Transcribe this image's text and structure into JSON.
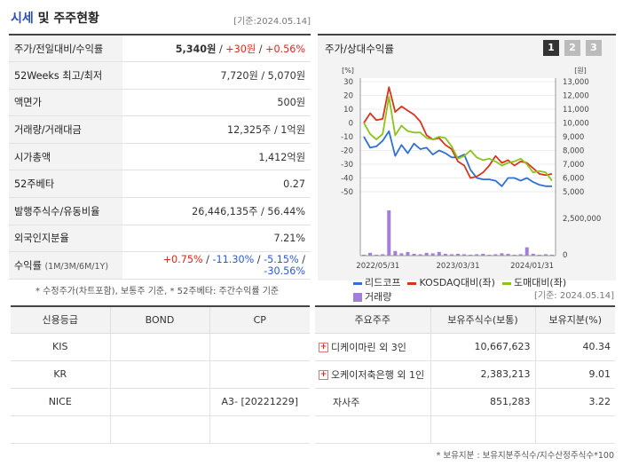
{
  "header": {
    "title_blue": "시세",
    "title_rest": " 및 주주현황",
    "as_of": "[기준:2024.05.14]"
  },
  "quote_rows": [
    {
      "key": "주가/전일대비/수익률",
      "price": "5,340원",
      "sep1": " / ",
      "change": "+30원",
      "sep2": " / ",
      "pct": "+0.56%"
    },
    {
      "key": "52Weeks 최고/최저",
      "value": "7,720원 / 5,070원"
    },
    {
      "key": "액면가",
      "value": "500원"
    },
    {
      "key": "거래량/거래대금",
      "value": "12,325주 / 1억원"
    },
    {
      "key": "시가총액",
      "value": "1,412억원"
    },
    {
      "key": "52주베타",
      "value": "0.27"
    },
    {
      "key": "발행주식수/유동비율",
      "value": "26,446,135주 / 56.44%"
    },
    {
      "key": "외국인지분율",
      "value": "7.21%"
    }
  ],
  "return_row": {
    "key": "수익률",
    "key_sub": "(1M/3M/6M/1Y)",
    "r1": "+0.75%",
    "r3": "-11.30%",
    "r6": "-5.15%",
    "r12": "-30.56%",
    "sep": " / "
  },
  "notes": {
    "quote_note": "* 수정주가(차트포함), 보통주 기준, * 52주베타: 주간수익률 기준",
    "as_of2": "[기준: 2024.05.14]",
    "holder_note": "* 보유지분 : 보유지분주식수/지수산정주식수*100"
  },
  "chart_panel": {
    "title": "주가/상대수익률",
    "tabs": [
      "1",
      "2",
      "3"
    ],
    "active_tab": 0
  },
  "chart_data": {
    "type": "line",
    "left_axis_unit": "[%]",
    "right_axis_unit": "[원]",
    "left_ticks": [
      30,
      20,
      10,
      0,
      -10,
      -20,
      -30,
      -40,
      -50
    ],
    "right_ticks": [
      "13,000",
      "12,000",
      "11,000",
      "10,000",
      "9,000",
      "8,000",
      "7,000",
      "6,000",
      "5,000"
    ],
    "volume_tick": "2,500,000",
    "volume_zero": "0",
    "x_labels": [
      "2022/05/31",
      "2023/03/31",
      "2024/01/31"
    ],
    "ylim_left": [
      -50,
      30
    ],
    "series": [
      {
        "name": "리드코프",
        "color": "#2f6fd6",
        "values": [
          -10,
          -18,
          -17,
          -13,
          -6,
          -24,
          -16,
          -22,
          -15,
          -19,
          -18,
          -23,
          -20,
          -22,
          -25,
          -25,
          -23,
          -34,
          -40,
          -41,
          -41,
          -42,
          -46,
          -40,
          -40,
          -42,
          -40,
          -43,
          -45,
          -46,
          -46
        ]
      },
      {
        "name": "KOSDAQ대비(좌)",
        "color": "#d9341c",
        "values": [
          0,
          7,
          2,
          3,
          26,
          8,
          12,
          9,
          6,
          1,
          -9,
          -12,
          -11,
          -16,
          -19,
          -28,
          -31,
          -40,
          -39,
          -36,
          -31,
          -24,
          -29,
          -27,
          -31,
          -28,
          -29,
          -33,
          -37,
          -38,
          -37
        ]
      },
      {
        "name": "도매대비(좌)",
        "color": "#8bc31a",
        "values": [
          0,
          -8,
          -12,
          -8,
          19,
          -9,
          -2,
          -6,
          -7,
          -7,
          -11,
          -12,
          -10,
          -11,
          -17,
          -26,
          -24,
          -20,
          -25,
          -27,
          -26,
          -28,
          -31,
          -29,
          -28,
          -26,
          -30,
          -36,
          -35,
          -36,
          -42
        ]
      },
      {
        "name": "거래량",
        "color": "#a17fd6",
        "type": "bar",
        "values": [
          0.02,
          0.06,
          0.02,
          0.03,
          0.98,
          0.1,
          0.05,
          0.08,
          0.04,
          0.03,
          0.06,
          0.05,
          0.08,
          0.04,
          0.03,
          0.04,
          0.03,
          0.02,
          0.03,
          0.04,
          0.02,
          0.03,
          0.05,
          0.04,
          0.02,
          0.03,
          0.18,
          0.04,
          0.02,
          0.03,
          0.02
        ]
      }
    ]
  },
  "credit_table": {
    "headers": [
      "신용등급",
      "BOND",
      "CP"
    ],
    "rows": [
      [
        "KIS",
        "",
        ""
      ],
      [
        "KR",
        "",
        ""
      ],
      [
        "NICE",
        "",
        "A3-  [20221229]"
      ],
      [
        "",
        "",
        ""
      ]
    ]
  },
  "holder_table": {
    "headers": [
      "주요주주",
      "보유주식수(보통)",
      "보유지분(%)"
    ],
    "rows": [
      {
        "name": "디케이마린 외 3인",
        "expand": true,
        "shares": "10,667,623",
        "pct": "40.34"
      },
      {
        "name": "오케이저축은행 외 1인",
        "expand": true,
        "shares": "2,383,213",
        "pct": "9.01"
      },
      {
        "name": "자사주",
        "expand": false,
        "shares": "851,283",
        "pct": "3.22"
      },
      {
        "name": "",
        "expand": false,
        "shares": "",
        "pct": ""
      }
    ]
  }
}
